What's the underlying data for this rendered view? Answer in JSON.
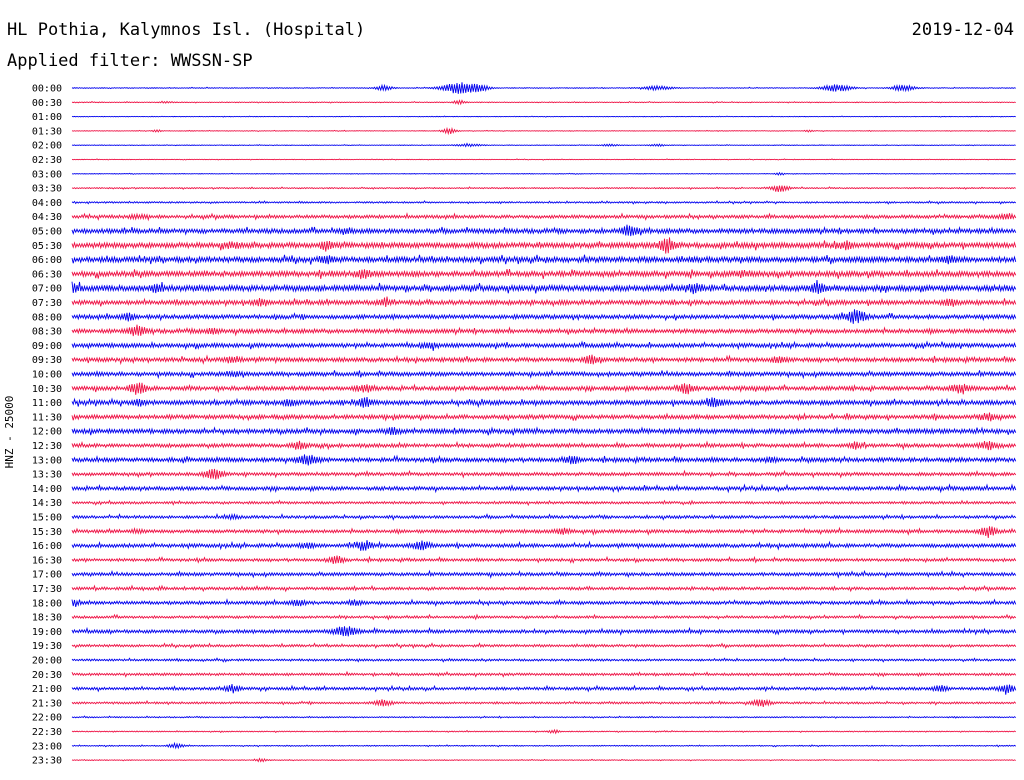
{
  "header": {
    "title": "HL Pothia, Kalymnos Isl. (Hospital)",
    "date": "2019-12-04",
    "filter": "Applied filter: WWSSN-SP",
    "channel_label": "HNZ - 25000"
  },
  "colors": {
    "odd": "#0000ee",
    "even": "#ee1144",
    "text": "#000000"
  },
  "chart_data": {
    "type": "line",
    "title": "HL Pothia, Kalymnos Isl. (Hospital)",
    "subtitle": "Applied filter: WWSSN-SP",
    "ylabel": "HNZ - 25000",
    "grid": false,
    "legend": "none",
    "tick_labels": [
      "00:00",
      "00:30",
      "01:00",
      "01:30",
      "02:00",
      "02:30",
      "03:00",
      "03:30",
      "04:00",
      "04:30",
      "05:00",
      "05:30",
      "06:00",
      "06:30",
      "07:00",
      "07:30",
      "08:00",
      "08:30",
      "09:00",
      "09:30",
      "10:00",
      "10:30",
      "11:00",
      "11:30",
      "12:00",
      "12:30",
      "13:00",
      "13:30",
      "14:00",
      "14:30",
      "15:00",
      "15:30",
      "16:00",
      "16:30",
      "17:00",
      "17:30",
      "18:00",
      "18:30",
      "19:00",
      "19:30",
      "20:00",
      "20:30",
      "21:00",
      "21:30",
      "22:00",
      "22:30",
      "23:00",
      "23:30"
    ],
    "noise_level": [
      0.4,
      0.4,
      0.3,
      0.3,
      0.3,
      0.3,
      0.3,
      0.6,
      0.8,
      1.6,
      2.2,
      2.6,
      2.6,
      2.6,
      2.8,
      2.2,
      2.0,
      2.0,
      2.0,
      2.0,
      2.0,
      2.0,
      2.2,
      2.0,
      2.2,
      1.8,
      2.0,
      1.6,
      1.8,
      1.2,
      1.4,
      1.6,
      1.8,
      1.4,
      1.6,
      1.4,
      1.6,
      1.2,
      1.6,
      1.2,
      1.0,
      1.2,
      1.4,
      1.0,
      0.6,
      0.5,
      0.5,
      0.4
    ],
    "events": [
      [
        [
          0.33,
          2.5,
          6
        ],
        [
          0.41,
          5.5,
          12
        ],
        [
          0.43,
          3.0,
          8
        ],
        [
          0.62,
          2.0,
          10
        ],
        [
          0.81,
          3.5,
          10
        ],
        [
          0.88,
          3.0,
          8
        ]
      ],
      [
        [
          0.1,
          0.8,
          4
        ],
        [
          0.41,
          2.0,
          4
        ]
      ],
      [],
      [
        [
          0.09,
          1.2,
          3
        ],
        [
          0.4,
          3.0,
          5
        ],
        [
          0.78,
          1.0,
          3
        ]
      ],
      [
        [
          0.42,
          1.2,
          10
        ],
        [
          0.57,
          1.0,
          6
        ],
        [
          0.62,
          1.0,
          6
        ]
      ],
      [],
      [
        [
          0.75,
          1.5,
          3
        ]
      ],
      [
        [
          0.75,
          3.5,
          6
        ]
      ],
      [],
      [
        [
          0.07,
          1.5,
          6
        ],
        [
          0.99,
          3.0,
          5
        ]
      ],
      [
        [
          0.59,
          4.5,
          6
        ],
        [
          0.29,
          2.0,
          6
        ]
      ],
      [
        [
          0.27,
          3.0,
          5
        ],
        [
          0.63,
          6.0,
          6
        ],
        [
          0.82,
          3.0,
          5
        ],
        [
          0.17,
          2.0,
          6
        ]
      ],
      [
        [
          0.27,
          3.0,
          5
        ],
        [
          0.93,
          2.5,
          6
        ]
      ],
      [
        [
          0.31,
          3.5,
          5
        ],
        [
          0.71,
          2.0,
          6
        ]
      ],
      [
        [
          0.0,
          4.0,
          6
        ],
        [
          0.09,
          3.5,
          4
        ],
        [
          0.66,
          3.5,
          5
        ],
        [
          0.79,
          4.0,
          5
        ]
      ],
      [
        [
          0.2,
          3.0,
          5
        ],
        [
          0.33,
          3.0,
          4
        ],
        [
          0.93,
          3.0,
          5
        ]
      ],
      [
        [
          0.06,
          3.5,
          4
        ],
        [
          0.83,
          6.0,
          7
        ]
      ],
      [
        [
          0.07,
          5.0,
          6
        ],
        [
          0.15,
          2.5,
          5
        ]
      ],
      [
        [
          0.38,
          2.0,
          5
        ]
      ],
      [
        [
          0.17,
          2.5,
          6
        ],
        [
          0.55,
          3.5,
          5
        ],
        [
          0.75,
          2.5,
          6
        ]
      ],
      [
        [
          0.17,
          2.0,
          5
        ]
      ],
      [
        [
          0.07,
          6.0,
          5
        ],
        [
          0.31,
          3.0,
          6
        ],
        [
          0.65,
          4.5,
          6
        ],
        [
          0.94,
          3.5,
          6
        ]
      ],
      [
        [
          0.07,
          2.5,
          4
        ],
        [
          0.23,
          2.5,
          5
        ],
        [
          0.31,
          4.0,
          5
        ],
        [
          0.68,
          3.5,
          6
        ]
      ],
      [
        [
          0.97,
          3.0,
          6
        ]
      ],
      [
        [
          0.34,
          3.0,
          5
        ]
      ],
      [
        [
          0.24,
          3.0,
          5
        ],
        [
          0.83,
          2.5,
          4
        ],
        [
          0.97,
          3.5,
          6
        ]
      ],
      [
        [
          0.25,
          4.5,
          7
        ],
        [
          0.53,
          3.0,
          5
        ],
        [
          0.74,
          2.0,
          4
        ]
      ],
      [
        [
          0.15,
          4.5,
          7
        ]
      ],
      [],
      [],
      [
        [
          0.17,
          1.5,
          5
        ]
      ],
      [
        [
          0.07,
          1.5,
          5
        ],
        [
          0.52,
          2.5,
          5
        ],
        [
          0.97,
          4.5,
          6
        ]
      ],
      [
        [
          0.31,
          3.5,
          6
        ],
        [
          0.37,
          4.0,
          6
        ],
        [
          0.25,
          2.5,
          5
        ]
      ],
      [
        [
          0.28,
          3.5,
          5
        ]
      ],
      [],
      [],
      [
        [
          0.0,
          2.5,
          5
        ],
        [
          0.24,
          2.5,
          5
        ],
        [
          0.3,
          2.0,
          5
        ]
      ],
      [],
      [
        [
          0.29,
          4.5,
          8
        ]
      ],
      [],
      [],
      [],
      [
        [
          0.17,
          3.5,
          5
        ],
        [
          0.92,
          3.0,
          5
        ],
        [
          0.99,
          4.0,
          6
        ]
      ],
      [
        [
          0.33,
          3.0,
          6
        ],
        [
          0.73,
          4.0,
          6
        ]
      ],
      [],
      [
        [
          0.51,
          1.5,
          4
        ]
      ],
      [
        [
          0.11,
          2.5,
          5
        ]
      ],
      [
        [
          0.2,
          1.5,
          4
        ]
      ]
    ]
  }
}
